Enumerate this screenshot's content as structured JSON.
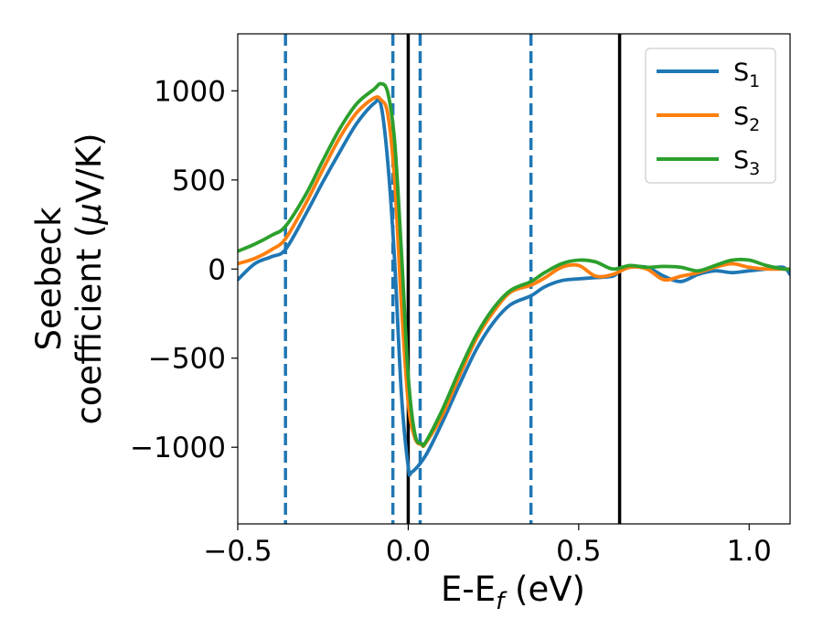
{
  "chart_data": {
    "type": "line",
    "xlabel_main": "E-E",
    "xlabel_sub": "f",
    "xlabel_unit": " (eV)",
    "ylabel_line1": "Seebeck",
    "ylabel_line2": "coefficient  (",
    "ylabel_mu": "μ",
    "ylabel_unit": "V/K)",
    "xlim": [
      -0.5,
      1.12
    ],
    "ylim": [
      -1430,
      1320
    ],
    "x_ticks": [
      -0.5,
      0.0,
      0.5,
      1.0
    ],
    "x_tick_labels": [
      "−0.5",
      "0.0",
      "0.5",
      "1.0"
    ],
    "y_ticks": [
      -1000,
      -500,
      0,
      500,
      1000
    ],
    "y_tick_labels": [
      "−1000",
      "−500",
      "0",
      "500",
      "1000"
    ],
    "grid": false,
    "legend_position": "top-right",
    "vlines_dashed": {
      "color": "#1f77b4",
      "x": [
        -0.36,
        -0.045,
        0.035,
        0.36
      ]
    },
    "vlines_solid": {
      "color": "#000000",
      "x": [
        0.0,
        0.62
      ]
    },
    "series": [
      {
        "name": "S",
        "subscript": "1",
        "color": "#1f77b4",
        "x": [
          -0.5,
          -0.45,
          -0.4,
          -0.36,
          -0.3,
          -0.25,
          -0.2,
          -0.15,
          -0.1,
          -0.08,
          -0.06,
          -0.04,
          -0.02,
          0.0,
          0.01,
          0.05,
          0.1,
          0.15,
          0.2,
          0.25,
          0.3,
          0.36,
          0.4,
          0.45,
          0.5,
          0.55,
          0.6,
          0.62,
          0.65,
          0.7,
          0.75,
          0.8,
          0.85,
          0.9,
          0.95,
          1.0,
          1.05,
          1.1,
          1.12
        ],
        "y": [
          -60,
          30,
          70,
          110,
          310,
          490,
          660,
          820,
          930,
          920,
          600,
          50,
          -700,
          -1110,
          -1140,
          -1050,
          -860,
          -650,
          -450,
          -300,
          -200,
          -150,
          -100,
          -65,
          -55,
          -48,
          -40,
          -10,
          10,
          10,
          -40,
          -70,
          -30,
          -10,
          -20,
          -10,
          0,
          10,
          -30
        ]
      },
      {
        "name": "S",
        "subscript": "2",
        "color": "#ff7f0e",
        "x": [
          -0.5,
          -0.45,
          -0.4,
          -0.36,
          -0.3,
          -0.25,
          -0.2,
          -0.15,
          -0.1,
          -0.08,
          -0.06,
          -0.04,
          -0.02,
          0.0,
          0.02,
          0.04,
          0.05,
          0.1,
          0.15,
          0.2,
          0.25,
          0.3,
          0.36,
          0.4,
          0.45,
          0.5,
          0.55,
          0.6,
          0.65,
          0.7,
          0.75,
          0.8,
          0.85,
          0.9,
          0.95,
          1.0,
          1.05,
          1.1,
          1.12
        ],
        "y": [
          30,
          60,
          110,
          170,
          370,
          560,
          740,
          880,
          960,
          950,
          870,
          500,
          -200,
          -750,
          -950,
          -985,
          -980,
          -820,
          -600,
          -390,
          -240,
          -130,
          -90,
          -50,
          10,
          20,
          -40,
          -30,
          10,
          0,
          -60,
          -40,
          -20,
          10,
          30,
          10,
          0,
          0,
          0
        ]
      },
      {
        "name": "S",
        "subscript": "3",
        "color": "#2ca02c",
        "x": [
          -0.5,
          -0.45,
          -0.4,
          -0.36,
          -0.3,
          -0.25,
          -0.2,
          -0.15,
          -0.1,
          -0.08,
          -0.06,
          -0.04,
          -0.02,
          0.0,
          0.02,
          0.04,
          0.05,
          0.1,
          0.15,
          0.2,
          0.25,
          0.3,
          0.36,
          0.4,
          0.45,
          0.5,
          0.55,
          0.6,
          0.65,
          0.7,
          0.75,
          0.8,
          0.85,
          0.9,
          0.95,
          1.0,
          1.05,
          1.1,
          1.12
        ],
        "y": [
          100,
          140,
          190,
          240,
          420,
          610,
          790,
          930,
          1010,
          1040,
          990,
          720,
          100,
          -600,
          -930,
          -980,
          -975,
          -790,
          -570,
          -370,
          -220,
          -120,
          -70,
          -20,
          30,
          50,
          40,
          0,
          20,
          10,
          15,
          10,
          -10,
          20,
          50,
          50,
          20,
          0,
          0
        ]
      }
    ]
  }
}
